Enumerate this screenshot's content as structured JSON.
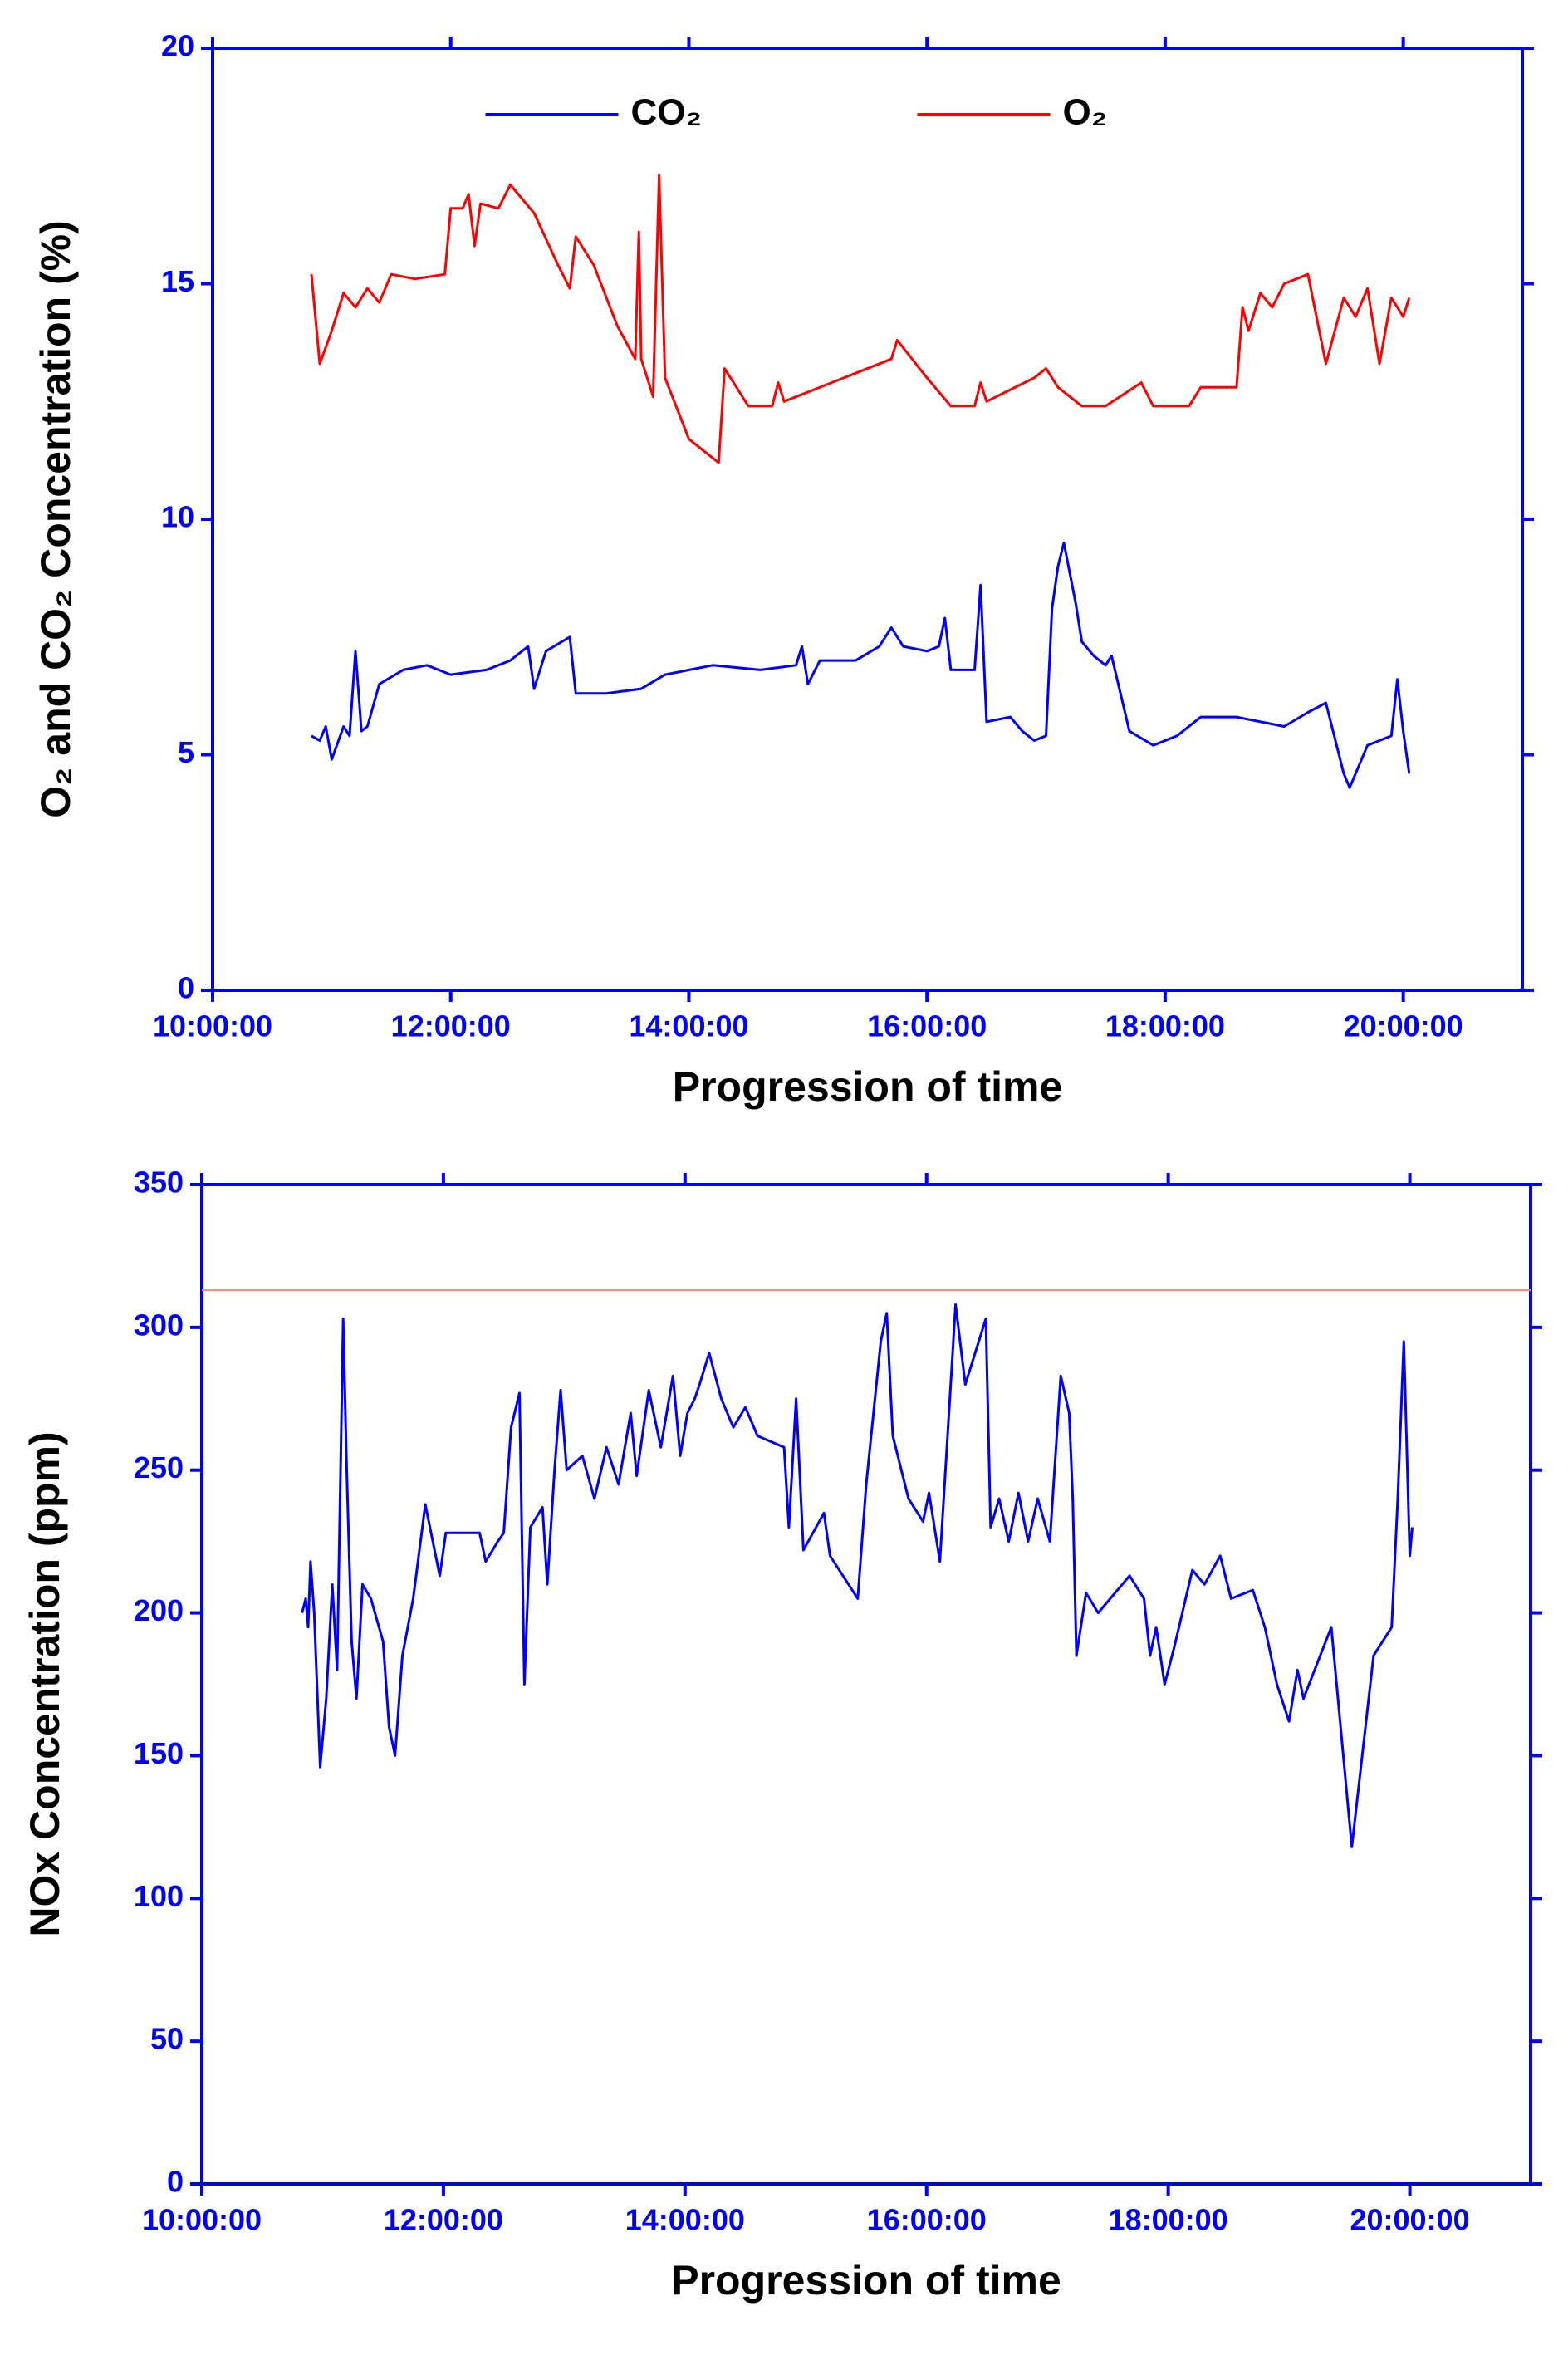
{
  "chart_data": [
    {
      "type": "line",
      "ylabel": "O₂ and CO₂ Concentration (%)",
      "xlabel": "Progression of time",
      "xlim": [
        10,
        21
      ],
      "xticks": [
        {
          "value": 10,
          "label": "10:00:00"
        },
        {
          "value": 12,
          "label": "12:00:00"
        },
        {
          "value": 14,
          "label": "14:00:00"
        },
        {
          "value": 16,
          "label": "16:00:00"
        },
        {
          "value": 18,
          "label": "18:00:00"
        },
        {
          "value": 20,
          "label": "20:00:00"
        }
      ],
      "ylim": [
        0,
        20
      ],
      "yticks": [
        0,
        5,
        10,
        15,
        20
      ],
      "legend": "top",
      "series": [
        {
          "name": "CO₂",
          "color": "#0000ff",
          "x": [
            10.83,
            10.9,
            10.95,
            11.0,
            11.1,
            11.15,
            11.2,
            11.25,
            11.3,
            11.4,
            11.6,
            11.8,
            12.0,
            12.3,
            12.5,
            12.65,
            12.7,
            12.8,
            13.0,
            13.05,
            13.3,
            13.6,
            13.8,
            14.2,
            14.6,
            14.9,
            14.95,
            15.0,
            15.1,
            15.4,
            15.6,
            15.7,
            15.8,
            16.0,
            16.1,
            16.15,
            16.2,
            16.4,
            16.45,
            16.5,
            16.7,
            16.8,
            16.9,
            17.0,
            17.05,
            17.1,
            17.15,
            17.25,
            17.3,
            17.4,
            17.5,
            17.55,
            17.7,
            17.9,
            18.1,
            18.3,
            18.6,
            18.8,
            19.0,
            19.2,
            19.35,
            19.5,
            19.55,
            19.7,
            19.9,
            19.95,
            20.0,
            20.05
          ],
          "values": [
            5.4,
            5.3,
            5.6,
            4.9,
            5.6,
            5.4,
            7.2,
            5.5,
            5.6,
            6.5,
            6.8,
            6.9,
            6.7,
            6.8,
            7.0,
            7.3,
            6.4,
            7.2,
            7.5,
            6.3,
            6.3,
            6.4,
            6.7,
            6.9,
            6.8,
            6.9,
            7.3,
            6.5,
            7.0,
            7.0,
            7.3,
            7.7,
            7.3,
            7.2,
            7.3,
            7.9,
            6.8,
            6.8,
            8.6,
            5.7,
            5.8,
            5.5,
            5.3,
            5.4,
            8.1,
            9.0,
            9.5,
            8.2,
            7.4,
            7.1,
            6.9,
            7.1,
            5.5,
            5.2,
            5.4,
            5.8,
            5.8,
            5.7,
            5.6,
            5.9,
            6.1,
            4.6,
            4.3,
            5.2,
            5.4,
            6.6,
            5.5,
            4.6
          ]
        },
        {
          "name": "O₂",
          "color": "#ff0000",
          "x": [
            10.83,
            10.9,
            11.0,
            11.1,
            11.2,
            11.3,
            11.4,
            11.5,
            11.7,
            11.95,
            12.0,
            12.1,
            12.15,
            12.2,
            12.25,
            12.4,
            12.5,
            12.7,
            12.9,
            13.0,
            13.05,
            13.2,
            13.4,
            13.55,
            13.58,
            13.6,
            13.7,
            13.75,
            13.8,
            14.0,
            14.2,
            14.25,
            14.3,
            14.4,
            14.5,
            14.7,
            14.75,
            14.8,
            15.7,
            15.75,
            16.0,
            16.2,
            16.4,
            16.45,
            16.5,
            16.9,
            17.0,
            17.1,
            17.3,
            17.5,
            17.8,
            17.9,
            18.2,
            18.3,
            18.6,
            18.65,
            18.7,
            18.8,
            18.9,
            19.0,
            19.2,
            19.35,
            19.5,
            19.6,
            19.7,
            19.8,
            19.9,
            20.0,
            20.05
          ],
          "values": [
            15.2,
            13.3,
            14.0,
            14.8,
            14.5,
            14.9,
            14.6,
            15.2,
            15.1,
            15.2,
            16.6,
            16.6,
            16.9,
            15.8,
            16.7,
            16.6,
            17.1,
            16.5,
            15.4,
            14.9,
            16.0,
            15.4,
            14.1,
            13.4,
            16.1,
            13.4,
            12.6,
            17.3,
            13.0,
            11.7,
            11.3,
            11.2,
            13.2,
            12.8,
            12.4,
            12.4,
            12.9,
            12.5,
            13.4,
            13.8,
            13.0,
            12.4,
            12.4,
            12.9,
            12.5,
            13.0,
            13.2,
            12.8,
            12.4,
            12.4,
            12.9,
            12.4,
            12.4,
            12.8,
            12.8,
            14.5,
            14.0,
            14.8,
            14.5,
            15.0,
            15.2,
            13.3,
            14.7,
            14.3,
            14.9,
            13.3,
            14.7,
            14.3,
            14.7
          ]
        }
      ]
    },
    {
      "type": "line",
      "ylabel": "NOx Concentration (ppm)",
      "xlabel": "Progression of time",
      "xlim": [
        10,
        21
      ],
      "xticks": [
        {
          "value": 10,
          "label": "10:00:00"
        },
        {
          "value": 12,
          "label": "12:00:00"
        },
        {
          "value": 14,
          "label": "14:00:00"
        },
        {
          "value": 16,
          "label": "16:00:00"
        },
        {
          "value": 18,
          "label": "18:00:00"
        },
        {
          "value": 20,
          "label": "20:00:00"
        }
      ],
      "ylim": [
        0,
        350
      ],
      "yticks": [
        0,
        50,
        100,
        150,
        200,
        250,
        300,
        350
      ],
      "reference_line": {
        "value": 313,
        "color": "#ff8080"
      },
      "series": [
        {
          "color": "#0000ff",
          "x": [
            10.83,
            10.86,
            10.88,
            10.9,
            10.93,
            10.98,
            11.03,
            11.08,
            11.12,
            11.17,
            11.2,
            11.24,
            11.28,
            11.33,
            11.4,
            11.5,
            11.55,
            11.6,
            11.66,
            11.75,
            11.85,
            11.97,
            12.02,
            12.3,
            12.35,
            12.45,
            12.5,
            12.56,
            12.63,
            12.67,
            12.72,
            12.82,
            12.86,
            12.92,
            12.97,
            13.02,
            13.15,
            13.25,
            13.35,
            13.45,
            13.55,
            13.6,
            13.7,
            13.8,
            13.9,
            13.96,
            14.02,
            14.08,
            14.12,
            14.2,
            14.3,
            14.4,
            14.5,
            14.6,
            14.82,
            14.86,
            14.92,
            14.98,
            15.15,
            15.2,
            15.43,
            15.5,
            15.62,
            15.67,
            15.72,
            15.85,
            15.97,
            16.02,
            16.11,
            16.24,
            16.32,
            16.49,
            16.53,
            16.6,
            16.68,
            16.76,
            16.84,
            16.92,
            17.02,
            17.11,
            17.18,
            17.21,
            17.24,
            17.32,
            17.42,
            17.52,
            17.68,
            17.8,
            17.85,
            17.9,
            17.97,
            18.05,
            18.2,
            18.3,
            18.43,
            18.52,
            18.7,
            18.8,
            18.9,
            19.0,
            19.07,
            19.12,
            19.35,
            19.52,
            19.7,
            19.85,
            19.9,
            19.95,
            20.0,
            20.02
          ],
          "values": [
            200,
            205,
            195,
            218,
            200,
            146,
            170,
            210,
            180,
            303,
            250,
            190,
            170,
            210,
            205,
            190,
            160,
            150,
            185,
            205,
            238,
            213,
            228,
            228,
            218,
            225,
            228,
            265,
            277,
            175,
            230,
            237,
            210,
            250,
            278,
            250,
            255,
            240,
            258,
            245,
            270,
            248,
            278,
            258,
            283,
            255,
            270,
            275,
            280,
            291,
            275,
            265,
            272,
            262,
            258,
            230,
            275,
            222,
            235,
            220,
            205,
            245,
            295,
            305,
            262,
            240,
            232,
            242,
            218,
            308,
            280,
            303,
            230,
            240,
            225,
            242,
            225,
            240,
            225,
            283,
            270,
            240,
            185,
            207,
            200,
            205,
            213,
            205,
            185,
            195,
            175,
            188,
            215,
            210,
            220,
            205,
            208,
            195,
            175,
            162,
            180,
            170,
            195,
            118,
            185,
            195,
            240,
            295,
            220,
            230
          ]
        }
      ]
    }
  ]
}
